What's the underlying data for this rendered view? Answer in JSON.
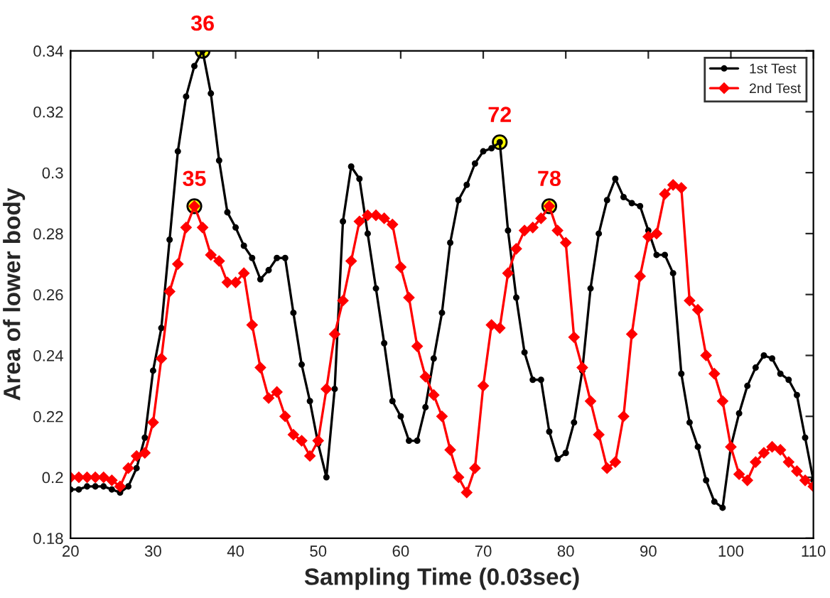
{
  "chart_data": {
    "type": "line",
    "xlabel": "Sampling Time (0.03sec)",
    "ylabel": "Area of lower body",
    "x": [
      20,
      21,
      22,
      23,
      24,
      25,
      26,
      27,
      28,
      29,
      30,
      31,
      32,
      33,
      34,
      35,
      36,
      37,
      38,
      39,
      40,
      41,
      42,
      43,
      44,
      45,
      46,
      47,
      48,
      49,
      50,
      51,
      52,
      53,
      54,
      55,
      56,
      57,
      58,
      59,
      60,
      61,
      62,
      63,
      64,
      65,
      66,
      67,
      68,
      69,
      70,
      71,
      72,
      73,
      74,
      75,
      76,
      77,
      78,
      79,
      80,
      81,
      82,
      83,
      84,
      85,
      86,
      87,
      88,
      89,
      90,
      91,
      92,
      93,
      94,
      95,
      96,
      97,
      98,
      99,
      100,
      101,
      102,
      103,
      104,
      105,
      106,
      107,
      108,
      109,
      110
    ],
    "series": [
      {
        "name": "1st Test",
        "color": "#000000",
        "marker": "circle",
        "values": [
          0.196,
          0.196,
          0.197,
          0.197,
          0.197,
          0.196,
          0.195,
          0.197,
          0.203,
          0.213,
          0.235,
          0.249,
          0.278,
          0.307,
          0.325,
          0.335,
          0.34,
          0.326,
          0.304,
          0.287,
          0.282,
          0.276,
          0.272,
          0.265,
          0.268,
          0.272,
          0.272,
          0.254,
          0.237,
          0.225,
          0.211,
          0.2,
          0.229,
          0.284,
          0.302,
          0.298,
          0.28,
          0.262,
          0.244,
          0.225,
          0.22,
          0.212,
          0.212,
          0.223,
          0.239,
          0.254,
          0.277,
          0.291,
          0.296,
          0.303,
          0.307,
          0.308,
          0.31,
          0.281,
          0.259,
          0.241,
          0.232,
          0.232,
          0.215,
          0.206,
          0.208,
          0.218,
          0.235,
          0.262,
          0.28,
          0.291,
          0.298,
          0.292,
          0.29,
          0.289,
          0.281,
          0.273,
          0.273,
          0.267,
          0.234,
          0.218,
          0.21,
          0.199,
          0.192,
          0.19,
          0.21,
          0.221,
          0.23,
          0.236,
          0.24,
          0.239,
          0.234,
          0.232,
          0.227,
          0.213,
          0.199
        ]
      },
      {
        "name": "2nd Test",
        "color": "#ff0000",
        "marker": "diamond",
        "values": [
          0.2,
          0.2,
          0.2,
          0.2,
          0.2,
          0.199,
          0.197,
          0.203,
          0.207,
          0.208,
          0.218,
          0.239,
          0.261,
          0.27,
          0.282,
          0.289,
          0.282,
          0.273,
          0.271,
          0.264,
          0.264,
          0.267,
          0.25,
          0.236,
          0.226,
          0.228,
          0.22,
          0.214,
          0.212,
          0.207,
          0.212,
          0.229,
          0.247,
          0.258,
          0.271,
          0.284,
          0.286,
          0.286,
          0.285,
          0.283,
          0.269,
          0.259,
          0.243,
          0.233,
          0.227,
          0.22,
          0.209,
          0.2,
          0.195,
          0.203,
          0.23,
          0.25,
          0.249,
          0.267,
          0.275,
          0.281,
          0.282,
          0.285,
          0.289,
          0.281,
          0.277,
          0.246,
          0.236,
          0.225,
          0.214,
          0.203,
          0.205,
          0.22,
          0.247,
          0.266,
          0.279,
          0.28,
          0.293,
          0.296,
          0.295,
          0.258,
          0.255,
          0.24,
          0.234,
          0.225,
          0.21,
          0.201,
          0.199,
          0.205,
          0.208,
          0.21,
          0.209,
          0.205,
          0.202,
          0.199,
          0.197
        ]
      }
    ],
    "annotations": [
      {
        "text": "36",
        "x": 36,
        "y": 0.34
      },
      {
        "text": "35",
        "x": 35,
        "y": 0.289
      },
      {
        "text": "72",
        "x": 72,
        "y": 0.31
      },
      {
        "text": "78",
        "x": 78,
        "y": 0.289
      }
    ],
    "xlim": [
      20,
      110
    ],
    "xticks": [
      20,
      30,
      40,
      50,
      60,
      70,
      80,
      90,
      100,
      110
    ],
    "ylim": [
      0.18,
      0.34
    ],
    "yticks": [
      0.18,
      0.2,
      0.22,
      0.24,
      0.26,
      0.28,
      0.3,
      0.32,
      0.34
    ],
    "grid": false,
    "legend": "top right",
    "line_style": "solid"
  }
}
